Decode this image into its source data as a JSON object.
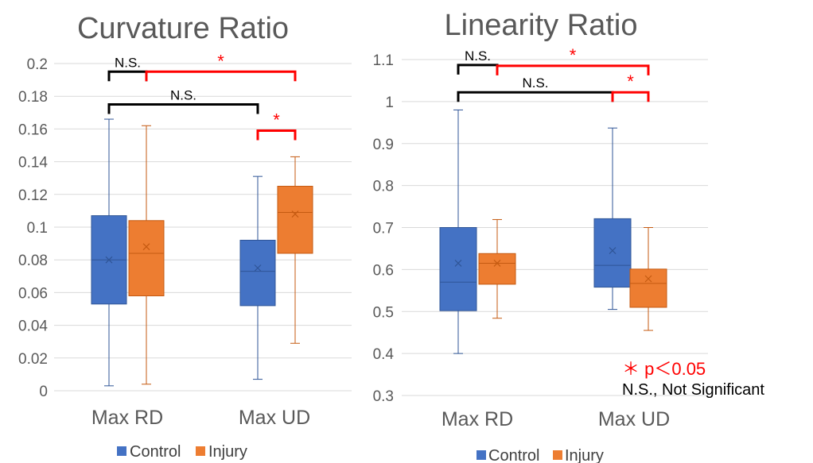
{
  "colors": {
    "control_fill": "#4472C4",
    "control_line": "#2F5597",
    "injury_fill": "#ED7D31",
    "injury_line": "#C55A11",
    "grid": "#D9D9D9",
    "sig_black": "#000000",
    "sig_red": "#FF0000"
  },
  "chart_data": [
    {
      "type": "box",
      "title": "Curvature Ratio",
      "categories": [
        "Max RD",
        "Max UD"
      ],
      "ylim": [
        0,
        0.2
      ],
      "yticks": [
        "0",
        "0.02",
        "0.04",
        "0.06",
        "0.08",
        "0.1",
        "0.12",
        "0.14",
        "0.16",
        "0.18",
        "0.2"
      ],
      "grid": true,
      "legend_position": "bottom",
      "series": [
        {
          "name": "Control",
          "boxes": [
            {
              "min": 0.003,
              "q1": 0.053,
              "median": 0.08,
              "q3": 0.107,
              "max": 0.166,
              "mean": 0.08
            },
            {
              "min": 0.007,
              "q1": 0.052,
              "median": 0.073,
              "q3": 0.092,
              "max": 0.131,
              "mean": 0.075
            }
          ]
        },
        {
          "name": "Injury",
          "boxes": [
            {
              "min": 0.004,
              "q1": 0.058,
              "median": 0.084,
              "q3": 0.104,
              "max": 0.162,
              "mean": 0.088
            },
            {
              "min": 0.029,
              "q1": 0.084,
              "median": 0.109,
              "q3": 0.125,
              "max": 0.143,
              "mean": 0.108
            }
          ]
        }
      ],
      "annotations": [
        {
          "label": "N.S.",
          "style": "black",
          "from": [
            0,
            0
          ],
          "to": [
            0,
            1
          ],
          "y": 0.195
        },
        {
          "label": "*",
          "style": "red",
          "from": [
            0,
            1
          ],
          "to": [
            1,
            1
          ],
          "y": 0.195
        },
        {
          "label": "N.S.",
          "style": "black",
          "from": [
            0,
            0
          ],
          "to": [
            1,
            0
          ],
          "y": 0.175
        },
        {
          "label": "*",
          "style": "red",
          "from": [
            1,
            0
          ],
          "to": [
            1,
            1
          ],
          "y": 0.159
        }
      ]
    },
    {
      "type": "box",
      "title": "Linearity Ratio",
      "categories": [
        "Max RD",
        "Max UD"
      ],
      "ylim": [
        0.3,
        1.1
      ],
      "yticks": [
        "0.3",
        "0.4",
        "0.5",
        "0.6",
        "0.7",
        "0.8",
        "0.9",
        "1",
        "1.1"
      ],
      "grid": true,
      "legend_position": "bottom",
      "series": [
        {
          "name": "Control",
          "boxes": [
            {
              "min": 0.4,
              "q1": 0.502,
              "median": 0.57,
              "q3": 0.7,
              "max": 0.98,
              "mean": 0.615
            },
            {
              "min": 0.505,
              "q1": 0.558,
              "median": 0.61,
              "q3": 0.721,
              "max": 0.937,
              "mean": 0.645
            }
          ]
        },
        {
          "name": "Injury",
          "boxes": [
            {
              "min": 0.484,
              "q1": 0.565,
              "median": 0.615,
              "q3": 0.638,
              "max": 0.719,
              "mean": 0.615
            },
            {
              "min": 0.455,
              "q1": 0.51,
              "median": 0.567,
              "q3": 0.601,
              "max": 0.7,
              "mean": 0.578
            }
          ]
        }
      ],
      "annotations": [
        {
          "label": "N.S.",
          "style": "black",
          "from": [
            0,
            0
          ],
          "to": [
            0,
            1
          ],
          "y": 1.087
        },
        {
          "label": "*",
          "style": "red",
          "from": [
            0,
            1
          ],
          "to": [
            1,
            1
          ],
          "y": 1.085
        },
        {
          "label": "N.S.",
          "style": "black",
          "from": [
            0,
            0
          ],
          "to": [
            1,
            0
          ],
          "y": 1.022
        },
        {
          "label": "*",
          "style": "red",
          "from": [
            1,
            0
          ],
          "to": [
            1,
            1
          ],
          "y": 1.022
        }
      ]
    }
  ],
  "legend": {
    "items": [
      {
        "label": "Control",
        "color": "#4472C4"
      },
      {
        "label": "Injury",
        "color": "#ED7D31"
      }
    ]
  },
  "notes": {
    "significance": "＊ p＜0.05",
    "ns": "N.S., Not Significant"
  }
}
